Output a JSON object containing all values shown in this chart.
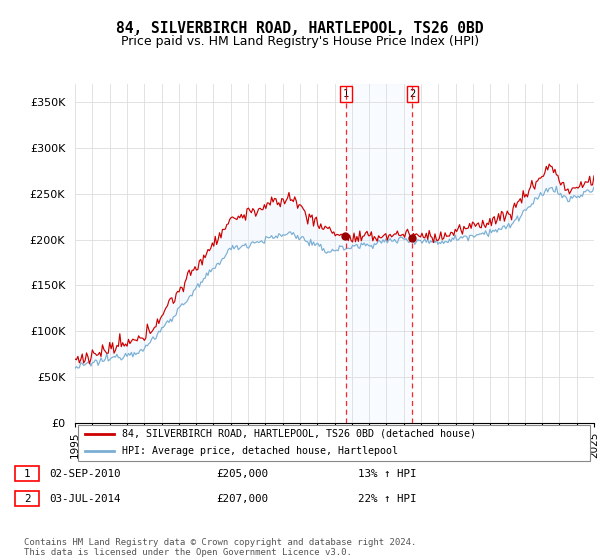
{
  "title": "84, SILVERBIRCH ROAD, HARTLEPOOL, TS26 0BD",
  "subtitle": "Price paid vs. HM Land Registry's House Price Index (HPI)",
  "ylim": [
    0,
    370000
  ],
  "yticks": [
    0,
    50000,
    100000,
    150000,
    200000,
    250000,
    300000,
    350000
  ],
  "ytick_labels": [
    "£0",
    "£50K",
    "£100K",
    "£150K",
    "£200K",
    "£250K",
    "£300K",
    "£350K"
  ],
  "sale1_t": 2010.667,
  "sale1_price": 205000,
  "sale2_t": 2014.5,
  "sale2_price": 207000,
  "line1_color": "#cc0000",
  "line2_color": "#7bafd4",
  "shade_color": "#ddeeff",
  "dot_color": "#990000",
  "legend1_label": "84, SILVERBIRCH ROAD, HARTLEPOOL, TS26 0BD (detached house)",
  "legend2_label": "HPI: Average price, detached house, Hartlepool",
  "info1_date": "02-SEP-2010",
  "info1_price": "£205,000",
  "info1_hpi": "13% ↑ HPI",
  "info2_date": "03-JUL-2014",
  "info2_price": "£207,000",
  "info2_hpi": "22% ↑ HPI",
  "footer": "Contains HM Land Registry data © Crown copyright and database right 2024.\nThis data is licensed under the Open Government Licence v3.0."
}
